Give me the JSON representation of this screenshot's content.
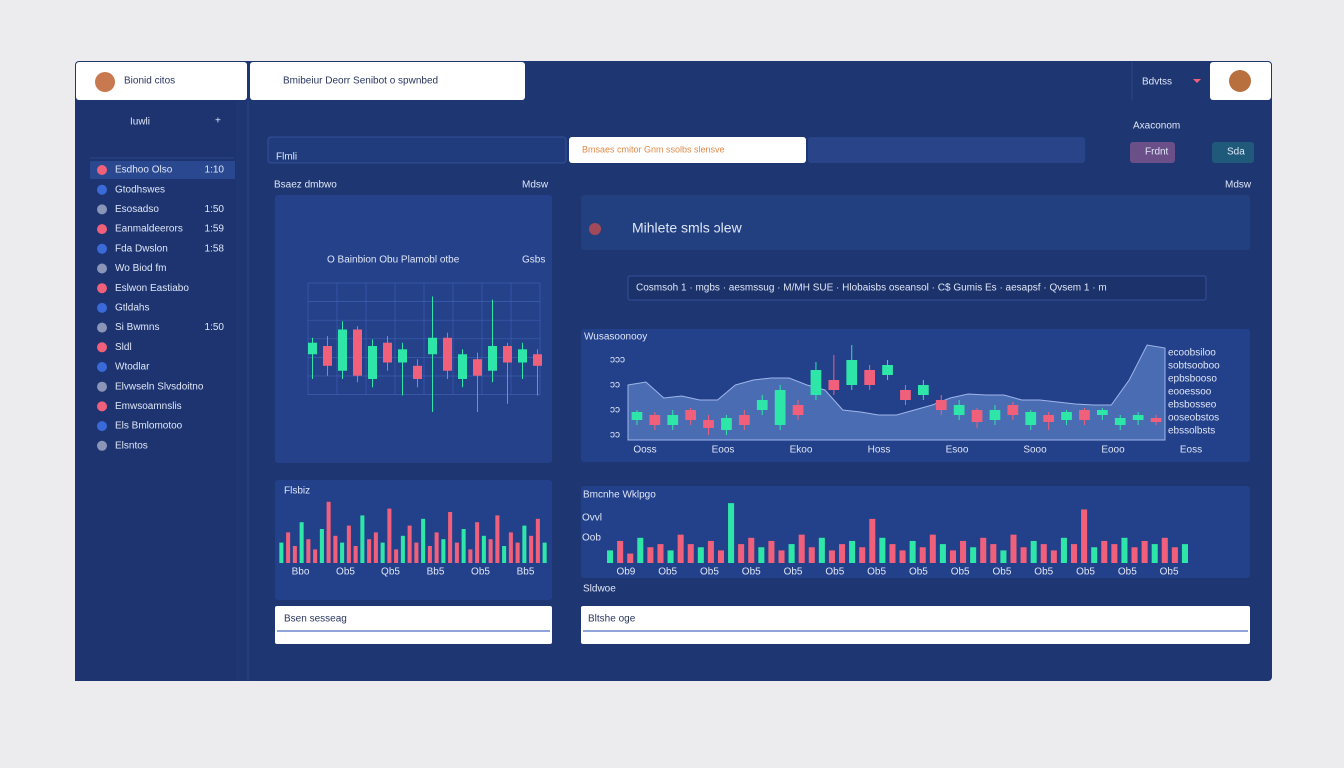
{
  "header": {
    "user": "Bionid citos",
    "search": "Bmibeiur Deorr Senibot o spwnbed",
    "account": "Bdvtss"
  },
  "sidebar": {
    "title": "Iuwli",
    "items": [
      {
        "label": "Esdhoo Olso",
        "value": "1:10"
      },
      {
        "label": "Gtodhswes"
      },
      {
        "label": "Esosadso",
        "value": "1:50"
      },
      {
        "label": "Eanmaldeerors",
        "value": "1:59"
      },
      {
        "label": "Fda Dwslon",
        "value": "1:58"
      },
      {
        "label": "Wo Biod fm"
      },
      {
        "label": "Eslwon Eastiabo"
      },
      {
        "label": "Gtldahs"
      },
      {
        "label": "Si Bwmns",
        "value": "1:50"
      },
      {
        "label": "Sldl"
      },
      {
        "label": "Wtodlar"
      },
      {
        "label": "Elvwseln Slvsdoitno"
      },
      {
        "label": "Emwsoamnslis"
      },
      {
        "label": "Els Bmlomotoo"
      },
      {
        "label": "Elsntos"
      }
    ]
  },
  "toolbar": {
    "field": "Flmli",
    "banner": "Bmsaes cmitor Gnm ssolbs slensve",
    "label": "Axaconom",
    "buttons": [
      "Frdnt",
      "Sda"
    ]
  },
  "left_panel": {
    "title": "Bsaez dmbwo",
    "side": "Mdsw",
    "chart": {
      "type": "candlestick",
      "title": "O Bainbion Obu Plamobl otbe",
      "side": "Gsbs",
      "up_color": "#2ee6a8",
      "down_color": "#f0607a",
      "ylim": [
        0,
        100
      ],
      "open": [
        55,
        60,
        45,
        70,
        40,
        62,
        50,
        48,
        55,
        65,
        40,
        52,
        45,
        60,
        50,
        55
      ],
      "close": [
        62,
        48,
        70,
        42,
        60,
        50,
        58,
        40,
        65,
        45,
        55,
        42,
        60,
        50,
        58,
        48
      ],
      "high": [
        65,
        66,
        75,
        72,
        64,
        66,
        62,
        52,
        90,
        68,
        58,
        56,
        88,
        62,
        62,
        58
      ],
      "low": [
        40,
        42,
        40,
        38,
        35,
        45,
        30,
        35,
        20,
        40,
        35,
        20,
        38,
        25,
        40,
        30
      ]
    },
    "volume": {
      "type": "bar",
      "title": "Flsbiz",
      "ylim": [
        0,
        100
      ],
      "up_color": "#2ee6a8",
      "down_color": "#f0607a",
      "values": [
        30,
        45,
        25,
        60,
        35,
        20,
        50,
        90,
        40,
        30,
        55,
        25,
        70,
        35,
        45,
        30,
        80,
        20,
        40,
        55,
        30,
        65,
        25,
        45,
        35,
        75,
        30,
        50,
        20,
        60,
        40,
        35,
        70,
        25,
        45,
        30,
        55,
        40,
        65,
        30
      ],
      "categories": [
        "Bbo",
        "Ob5",
        "Qb5",
        "Bb5",
        "Ob5",
        "Bb5"
      ]
    },
    "footer": "Bsen sesseag"
  },
  "right_panel": {
    "title": "Mihlete smls ɔlew",
    "side": "Mdsw",
    "info": "Cosmsoh 1 · mgbs · aesmssug · M/MH SUE · Hlobaisbs   oseansol · C$ Gumis Es · aesapsf · Qvsem 1 · m",
    "chart": {
      "type": "candlestick",
      "title": "Wusasoonooy",
      "up_color": "#2ee6a8",
      "down_color": "#f0607a",
      "area_color": "#6b8fd6",
      "ylim": [
        0,
        100
      ],
      "yticks": [
        "ɔɔɔ",
        "ɔɔ",
        "ɔɔ",
        "ɔɔ"
      ],
      "area": [
        55,
        58,
        42,
        44,
        40,
        40,
        55,
        60,
        62,
        62,
        55,
        50,
        30,
        28,
        25,
        25,
        30,
        35,
        42,
        46,
        45,
        45,
        40,
        40,
        38,
        36,
        35,
        35,
        60,
        95,
        92
      ],
      "open": [
        20,
        25,
        15,
        30,
        20,
        10,
        25,
        30,
        15,
        35,
        45,
        60,
        55,
        70,
        65,
        50,
        45,
        40,
        25,
        30,
        20,
        35,
        15,
        25,
        20,
        30,
        25,
        15,
        20,
        22
      ],
      "close": [
        28,
        15,
        25,
        20,
        12,
        22,
        15,
        40,
        50,
        25,
        70,
        50,
        80,
        55,
        75,
        40,
        55,
        30,
        35,
        18,
        30,
        25,
        28,
        18,
        28,
        20,
        30,
        22,
        25,
        18
      ],
      "high": [
        30,
        28,
        30,
        32,
        25,
        25,
        30,
        45,
        55,
        40,
        78,
        85,
        95,
        75,
        80,
        55,
        60,
        45,
        40,
        32,
        35,
        38,
        30,
        28,
        30,
        32,
        32,
        25,
        28,
        25
      ],
      "low": [
        15,
        10,
        10,
        15,
        5,
        5,
        10,
        25,
        10,
        20,
        40,
        45,
        50,
        50,
        60,
        35,
        40,
        25,
        20,
        12,
        15,
        20,
        10,
        10,
        15,
        15,
        20,
        10,
        15,
        15
      ],
      "categories": [
        "Ooss",
        "Eoos",
        "Ekoo",
        "Hoss",
        "Esoo",
        "Sooo",
        "Eooo",
        "Eoss"
      ],
      "legend": [
        "ecoobsiloo",
        "sobtsooboo",
        "epbsbooso",
        "eooessoo",
        "ebsbosseo",
        "ooseobstos",
        "ebssolbsts"
      ]
    },
    "volume": {
      "type": "bar",
      "title": "Bmcnhe Wklpgo",
      "ylim": [
        0,
        100
      ],
      "up_color": "#2ee6a8",
      "down_color": "#f0607a",
      "yticks": [
        "Ovvl",
        "Oob"
      ],
      "values": [
        20,
        35,
        15,
        40,
        25,
        30,
        20,
        45,
        30,
        25,
        35,
        20,
        95,
        30,
        40,
        25,
        35,
        20,
        30,
        45,
        25,
        40,
        20,
        30,
        35,
        25,
        70,
        40,
        30,
        20,
        35,
        25,
        45,
        30,
        20,
        35,
        25,
        40,
        30,
        20,
        45,
        25,
        35,
        30,
        20,
        40,
        30,
        85,
        25,
        35,
        30,
        40,
        25,
        35,
        30,
        40,
        25,
        30
      ],
      "categories": [
        "Ob9",
        "Ob5",
        "Ob5",
        "Ob5",
        "Ob5",
        "Ob5",
        "Ob5",
        "Ob5",
        "Ob5",
        "Ob5",
        "Ob5",
        "Ob5",
        "Ob5",
        "Ob5"
      ]
    },
    "footer_title": "Sldwoe",
    "footer": "Bltshe oge"
  }
}
